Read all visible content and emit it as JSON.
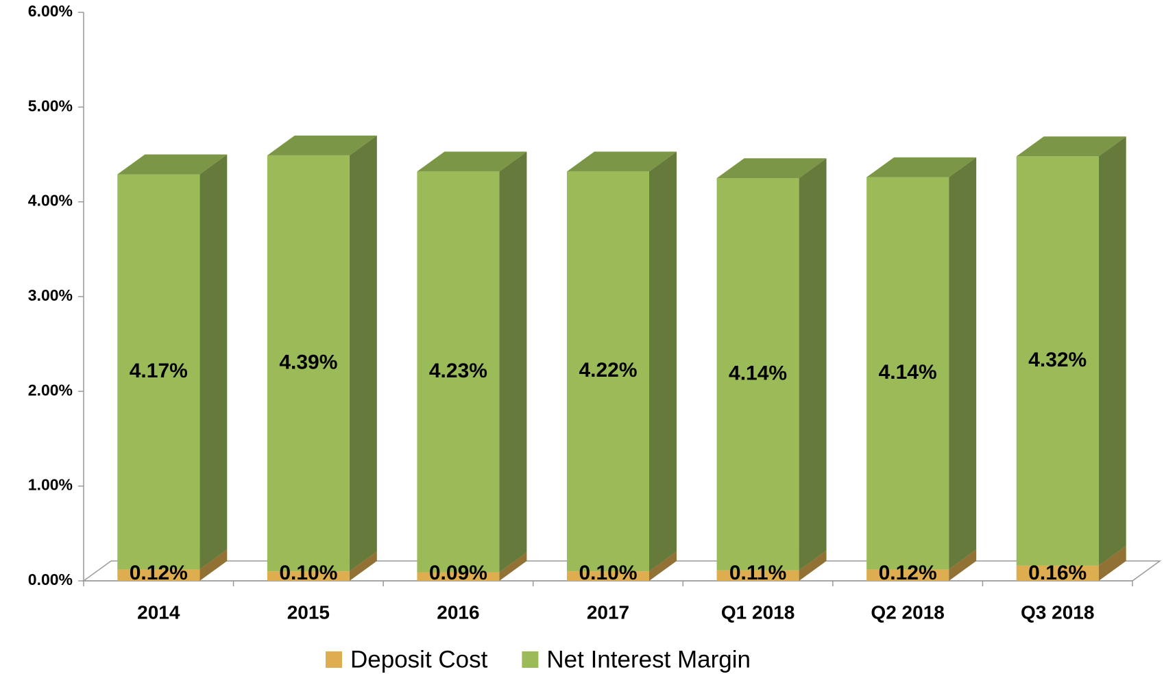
{
  "chart_data": {
    "type": "bar3d_stacked",
    "categories": [
      "2014",
      "2015",
      "2016",
      "2017",
      "Q1 2018",
      "Q2 2018",
      "Q3 2018"
    ],
    "series": [
      {
        "name": "Deposit Cost",
        "color": "#ddad4f",
        "values": [
          0.12,
          0.1,
          0.09,
          0.1,
          0.11,
          0.12,
          0.16
        ],
        "value_labels": [
          "0.12%",
          "0.10%",
          "0.09%",
          "0.10%",
          "0.11%",
          "0.12%",
          "0.16%"
        ]
      },
      {
        "name": "Net Interest Margin",
        "color": "#9bbb59",
        "values": [
          4.17,
          4.39,
          4.23,
          4.22,
          4.14,
          4.14,
          4.32
        ],
        "value_labels": [
          "4.17%",
          "4.39%",
          "4.23%",
          "4.22%",
          "4.14%",
          "4.14%",
          "4.32%"
        ]
      }
    ],
    "ylim": [
      0,
      6
    ],
    "yticks": [
      {
        "value": 0,
        "label": "0.00%"
      },
      {
        "value": 1,
        "label": "1.00%"
      },
      {
        "value": 2,
        "label": "2.00%"
      },
      {
        "value": 3,
        "label": "3.00%"
      },
      {
        "value": 4,
        "label": "4.00%"
      },
      {
        "value": 5,
        "label": "5.00%"
      },
      {
        "value": 6,
        "label": "6.00%"
      }
    ],
    "legend": "bottom"
  }
}
